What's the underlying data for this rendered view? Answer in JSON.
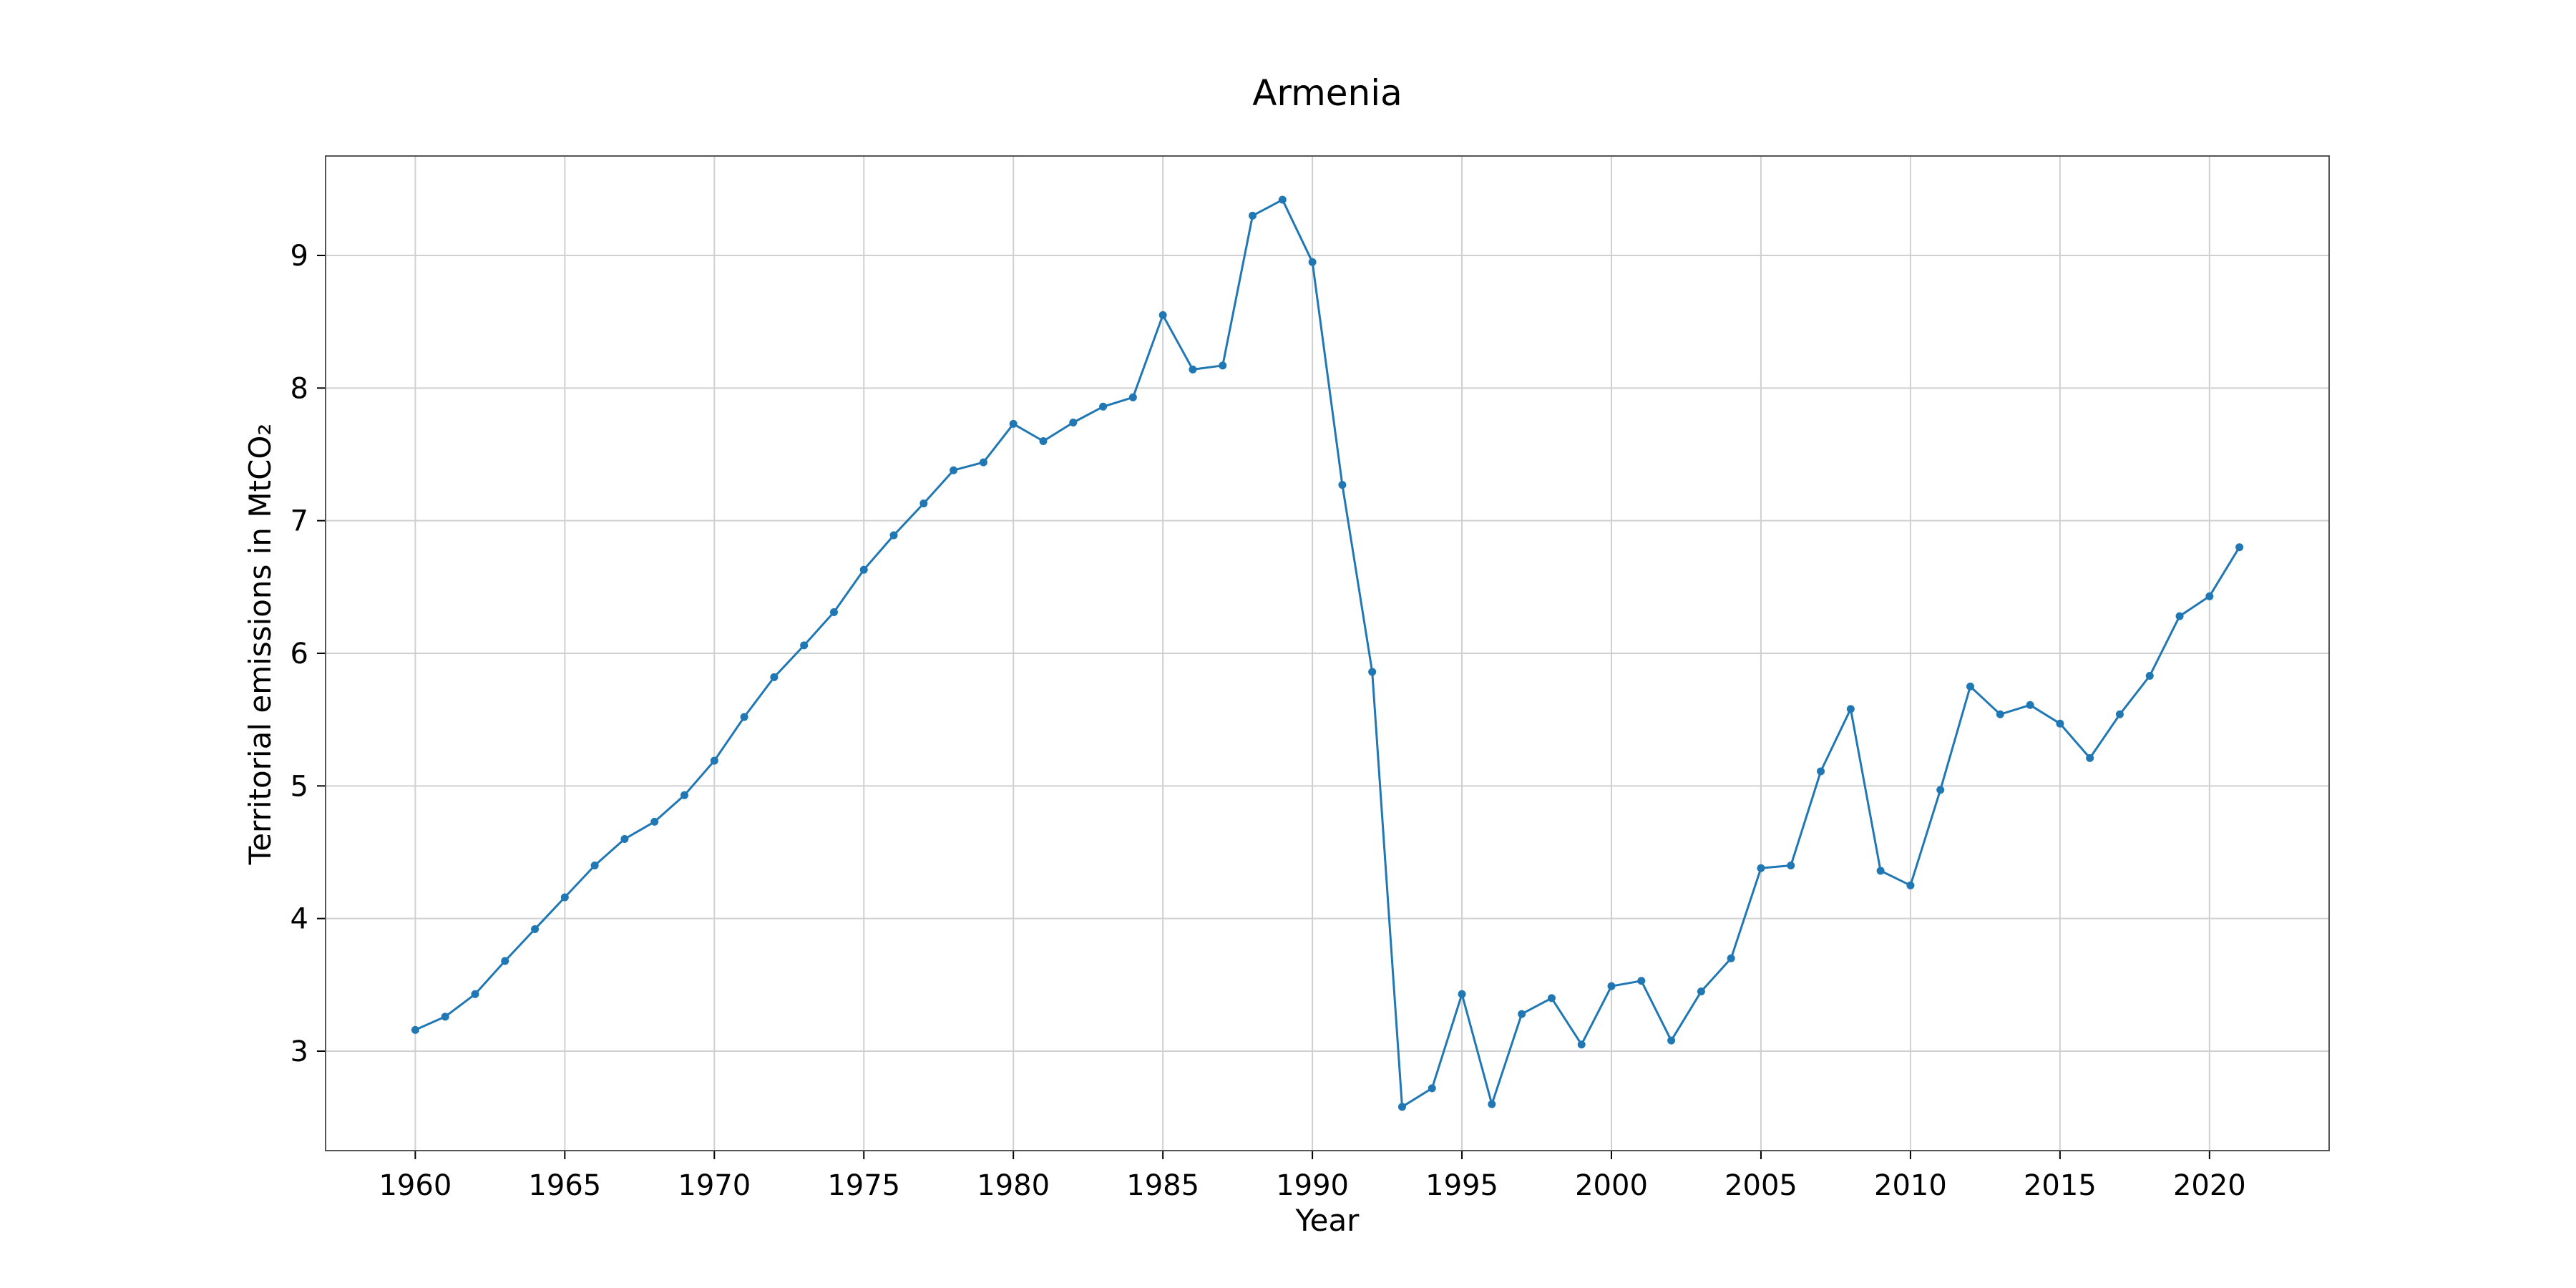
{
  "colors": {
    "series": "#1f77b4",
    "grid": "#d0d0d0",
    "frame": "#555555"
  },
  "chart_data": {
    "type": "line",
    "title": "Armenia",
    "xlabel": "Year",
    "ylabel": "Territorial emissions in MtCO₂",
    "xlim": [
      1957,
      2024
    ],
    "ylim": [
      2.25,
      9.75
    ],
    "xticks": [
      1960,
      1965,
      1970,
      1975,
      1980,
      1985,
      1990,
      1995,
      2000,
      2005,
      2010,
      2015,
      2020
    ],
    "yticks": [
      3,
      4,
      5,
      6,
      7,
      8,
      9
    ],
    "grid": true,
    "markers": true,
    "x": [
      1960,
      1961,
      1962,
      1963,
      1964,
      1965,
      1966,
      1967,
      1968,
      1969,
      1970,
      1971,
      1972,
      1973,
      1974,
      1975,
      1976,
      1977,
      1978,
      1979,
      1980,
      1981,
      1982,
      1983,
      1984,
      1985,
      1986,
      1987,
      1988,
      1989,
      1990,
      1991,
      1992,
      1993,
      1994,
      1995,
      1996,
      1997,
      1998,
      1999,
      2000,
      2001,
      2002,
      2003,
      2004,
      2005,
      2006,
      2007,
      2008,
      2009,
      2010,
      2011,
      2012,
      2013,
      2014,
      2015,
      2016,
      2017,
      2018,
      2019,
      2020,
      2021
    ],
    "y": [
      3.16,
      3.26,
      3.43,
      3.68,
      3.92,
      4.16,
      4.4,
      4.6,
      4.73,
      4.93,
      5.19,
      5.52,
      5.82,
      6.06,
      6.31,
      6.63,
      6.89,
      7.13,
      7.38,
      7.44,
      7.73,
      7.6,
      7.74,
      7.86,
      7.93,
      8.55,
      8.14,
      8.17,
      9.3,
      9.42,
      8.95,
      7.27,
      5.86,
      2.58,
      2.72,
      3.43,
      2.6,
      3.28,
      3.4,
      3.05,
      3.49,
      3.53,
      3.08,
      3.45,
      3.7,
      4.38,
      4.4,
      5.11,
      5.58,
      4.36,
      4.25,
      4.97,
      5.75,
      5.54,
      5.61,
      5.47,
      5.21,
      5.54,
      5.83,
      6.28,
      6.43,
      6.8
    ]
  }
}
